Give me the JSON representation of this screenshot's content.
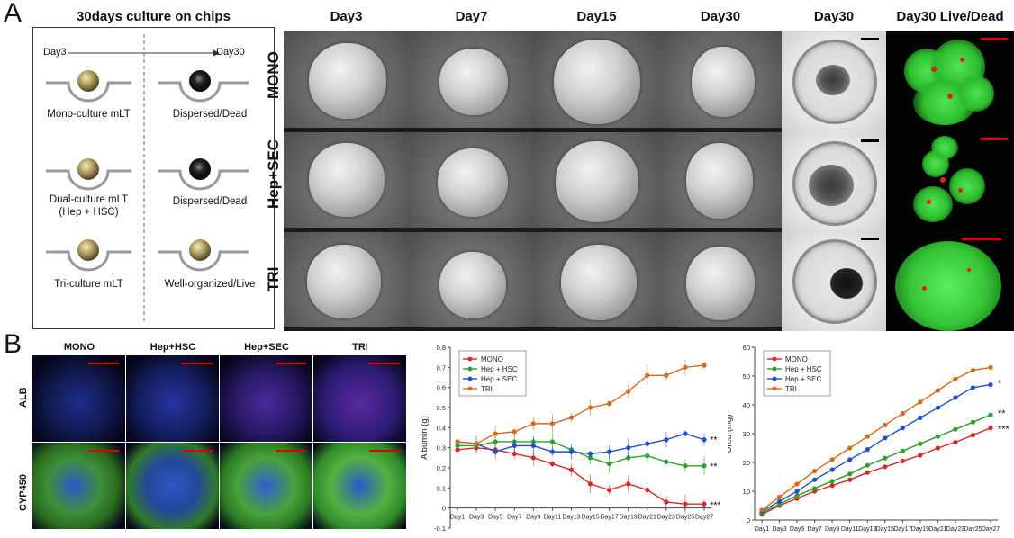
{
  "panel_labels": {
    "a": "A",
    "b": "B"
  },
  "schematic": {
    "title": "30days culture on chips",
    "timeline_start": "Day3",
    "timeline_end": "Day30",
    "rows": [
      {
        "left": "Mono-culture mLT",
        "right": "Dispersed/Dead"
      },
      {
        "left": "Dual-culture mLT\n(Hep + HSC)",
        "right": "Dispersed/Dead"
      },
      {
        "left": "Tri-culture mLT",
        "right": "Well-organized/Live"
      }
    ]
  },
  "image_grid": {
    "column_headers": [
      "Day3",
      "Day7",
      "Day15",
      "Day30",
      "Day30",
      "Day30 Live/Dead"
    ],
    "row_headers": [
      "MONO",
      "Hep+SEC",
      "TRI"
    ]
  },
  "stain_grid": {
    "column_headers": [
      "MONO",
      "Hep+HSC",
      "Hep+SEC",
      "TRI"
    ],
    "row_headers": [
      "ALB",
      "CYP450"
    ]
  },
  "chart_data": [
    {
      "type": "line",
      "title": "",
      "xlabel": "",
      "ylabel": "Albumin (g)",
      "ylim": [
        -0.1,
        0.8
      ],
      "yticks": [
        "-0.1",
        "0",
        "0.1",
        "0.2",
        "0.3",
        "0.4",
        "0.5",
        "0.6",
        "0.7",
        "0.8"
      ],
      "x": [
        "Day1",
        "Day3",
        "Day5",
        "Day7",
        "Day9",
        "Day11",
        "Day13",
        "Day15",
        "Day17",
        "Day19",
        "Day21",
        "Day23",
        "Day25",
        "Day27"
      ],
      "series": [
        {
          "name": "MONO",
          "color": "#d62728",
          "values": [
            0.29,
            0.3,
            0.29,
            0.27,
            0.25,
            0.22,
            0.19,
            0.12,
            0.09,
            0.12,
            0.09,
            0.03,
            0.02,
            0.02
          ],
          "annotation": "***"
        },
        {
          "name": "Hep + HSC",
          "color": "#2ca02c",
          "values": [
            0.31,
            0.31,
            0.33,
            0.33,
            0.33,
            0.33,
            0.29,
            0.25,
            0.22,
            0.25,
            0.26,
            0.23,
            0.21,
            0.21
          ],
          "annotation": "**"
        },
        {
          "name": "Hep + SEC",
          "color": "#1f4fd6",
          "values": [
            0.33,
            0.32,
            0.28,
            0.31,
            0.31,
            0.28,
            0.28,
            0.27,
            0.28,
            0.3,
            0.32,
            0.34,
            0.37,
            0.34
          ],
          "annotation": "**"
        },
        {
          "name": "TRI",
          "color": "#d8691c",
          "values": [
            0.33,
            0.32,
            0.37,
            0.38,
            0.42,
            0.42,
            0.45,
            0.5,
            0.52,
            0.58,
            0.66,
            0.66,
            0.7,
            0.71
          ],
          "annotation": ""
        }
      ]
    },
    {
      "type": "line",
      "title": "",
      "xlabel": "",
      "ylabel": "Urea (mg)",
      "ylim": [
        0,
        60
      ],
      "yticks": [
        "0",
        "10",
        "20",
        "30",
        "40",
        "50",
        "60"
      ],
      "x": [
        "Day1",
        "Day3",
        "Day5",
        "Day7",
        "Day9",
        "Day11",
        "Day13",
        "Day15",
        "Day17",
        "Day19",
        "Day21",
        "Day23",
        "Day25",
        "Day27"
      ],
      "series": [
        {
          "name": "MONO",
          "color": "#d62728",
          "values": [
            2,
            5,
            7.5,
            10,
            12,
            14,
            16.5,
            18.5,
            20.5,
            22.5,
            25,
            27,
            29.5,
            32
          ],
          "annotation": "***"
        },
        {
          "name": "Hep + HSC",
          "color": "#2ca02c",
          "values": [
            2.5,
            5.5,
            8.5,
            11,
            13.5,
            16,
            19,
            21.5,
            24,
            26.5,
            29,
            31.5,
            34,
            36.5
          ],
          "annotation": "**"
        },
        {
          "name": "Hep + SEC",
          "color": "#1f4fd6",
          "values": [
            3,
            6.5,
            10,
            14,
            17.5,
            21,
            24.5,
            28.5,
            32,
            35.5,
            39,
            42.5,
            46,
            47
          ],
          "annotation": "*"
        },
        {
          "name": "TRI",
          "color": "#d8691c",
          "values": [
            3.5,
            8,
            12.5,
            17,
            21,
            25,
            29,
            33,
            37,
            41,
            45,
            49,
            52,
            53
          ],
          "annotation": ""
        }
      ]
    }
  ]
}
